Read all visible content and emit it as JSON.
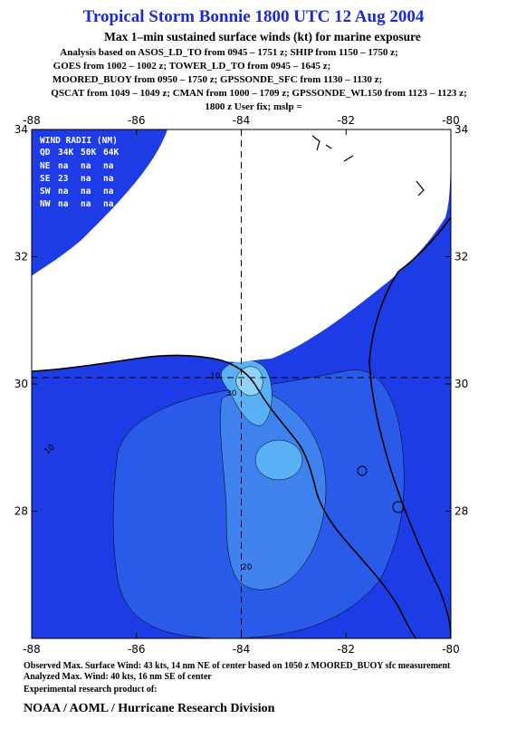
{
  "header": {
    "title": "Tropical Storm Bonnie 1800 UTC 12 Aug 2004",
    "subtitle": "Max 1–min sustained surface winds (kt) for marine exposure",
    "analysis_lines": [
      "Analysis based on  ASOS_LD_TO from 0945 – 1751 z;  SHIP from 1150 – 1750 z;",
      "GOES from 1002 – 1002 z;  TOWER_LD_TO from 0945 – 1645 z;",
      "MOORED_BUOY from 0950 – 1750 z;  GPSSONDE_SFC from 1130 – 1130 z;",
      "QSCAT from 1049 – 1049 z;  CMAN from 1000 – 1709 z;  GPSSONDE_WL150 from 1123 – 1123 z;",
      "1800 z User fix; mslp ="
    ]
  },
  "map": {
    "xlim": [
      -88,
      -80
    ],
    "ylim": [
      26,
      34
    ],
    "xticks": [
      -88,
      -86,
      -84,
      -82,
      -80
    ],
    "yticks": [
      28,
      30,
      32,
      34
    ],
    "center": {
      "lon": -84.0,
      "lat": 30.1
    },
    "contour_labels": [
      "10",
      "20",
      "30",
      "10"
    ]
  },
  "wind_radii": {
    "title": "WIND RADII (NM)",
    "header": [
      "QD",
      "34K",
      "50K",
      "64K"
    ],
    "rows": [
      [
        "NE",
        "na",
        "na",
        "na"
      ],
      [
        "SE",
        "23",
        "na",
        "na"
      ],
      [
        "SW",
        "na",
        "na",
        "na"
      ],
      [
        "NW",
        "na",
        "na",
        "na"
      ]
    ]
  },
  "footer": {
    "observed": "Observed Max. Surface Wind: 43 kts, 14 nm NE of center based on 1050 z MOORED_BUOY sfc measurement",
    "analyzed": "Analyzed Max. Wind: 40 kts, 16 nm SE of center",
    "product": "Experimental research product of:",
    "organization": "NOAA / AOML / Hurricane Research Division"
  }
}
